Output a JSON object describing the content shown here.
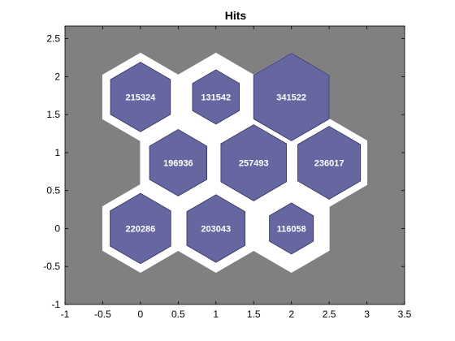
{
  "chart_data": {
    "type": "hexbin",
    "title": "Hits",
    "xlabel": "",
    "ylabel": "",
    "xlim": [
      -1,
      3.5
    ],
    "ylim": [
      -1,
      2.667
    ],
    "x_ticks": [
      -1,
      -0.5,
      0,
      0.5,
      1,
      1.5,
      2,
      2.5,
      3,
      3.5
    ],
    "y_ticks": [
      -1,
      -0.5,
      0,
      0.5,
      1,
      1.5,
      2,
      2.5
    ],
    "x_tick_labels": [
      "-1",
      "-0.5",
      "0",
      "0.5",
      "1",
      "1.5",
      "2",
      "2.5",
      "3",
      "3.5"
    ],
    "y_tick_labels": [
      "-1",
      "-0.5",
      "0",
      "0.5",
      "1",
      "1.5",
      "2",
      "2.5"
    ],
    "cells": [
      {
        "x": 0,
        "y": 0,
        "value": 220286,
        "label": "220286"
      },
      {
        "x": 1,
        "y": 0,
        "value": 203043,
        "label": "203043"
      },
      {
        "x": 2,
        "y": 0,
        "value": 116058,
        "label": "116058"
      },
      {
        "x": 0.5,
        "y": 0.866,
        "value": 196936,
        "label": "196936"
      },
      {
        "x": 1.5,
        "y": 0.866,
        "value": 257493,
        "label": "257493"
      },
      {
        "x": 2.5,
        "y": 0.866,
        "value": 236017,
        "label": "236017"
      },
      {
        "x": 0,
        "y": 1.732,
        "value": 215324,
        "label": "215324"
      },
      {
        "x": 1,
        "y": 1.732,
        "value": 131542,
        "label": "131542"
      },
      {
        "x": 2,
        "y": 1.732,
        "value": 341522,
        "label": "341522"
      }
    ],
    "colors": {
      "plot_background": "#808080",
      "cell_background": "#ffffff",
      "hex_fill": "#6666a0",
      "hex_stroke": "#303060"
    }
  }
}
